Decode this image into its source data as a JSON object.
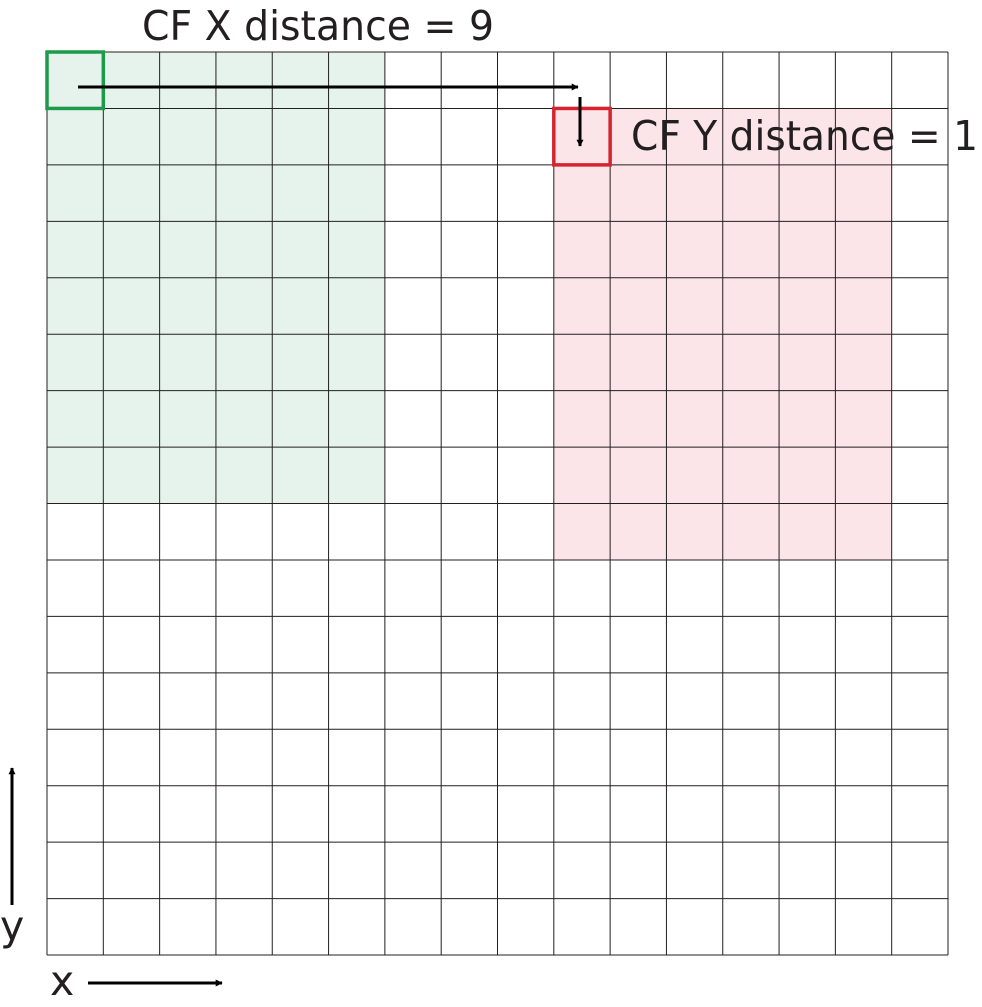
{
  "labels": {
    "x_distance": "CF X distance = 9",
    "y_distance": "CF Y distance = 1",
    "x_axis": "x",
    "y_axis": "y"
  },
  "grid": {
    "columns": 16,
    "rows": 16
  },
  "regions": {
    "green": {
      "col_start": 0,
      "col_end": 6,
      "row_start": 0,
      "row_end": 8,
      "fill": "#e5f3ec",
      "outline": "#1e9a4c"
    },
    "red": {
      "col_start": 9,
      "col_end": 15,
      "row_start": 1,
      "row_end": 9,
      "fill": "#fbe5e8",
      "outline": "#d7232f"
    }
  },
  "colors": {
    "grid_line": "#231f20",
    "arrow": "#000000",
    "text": "#231f20"
  }
}
